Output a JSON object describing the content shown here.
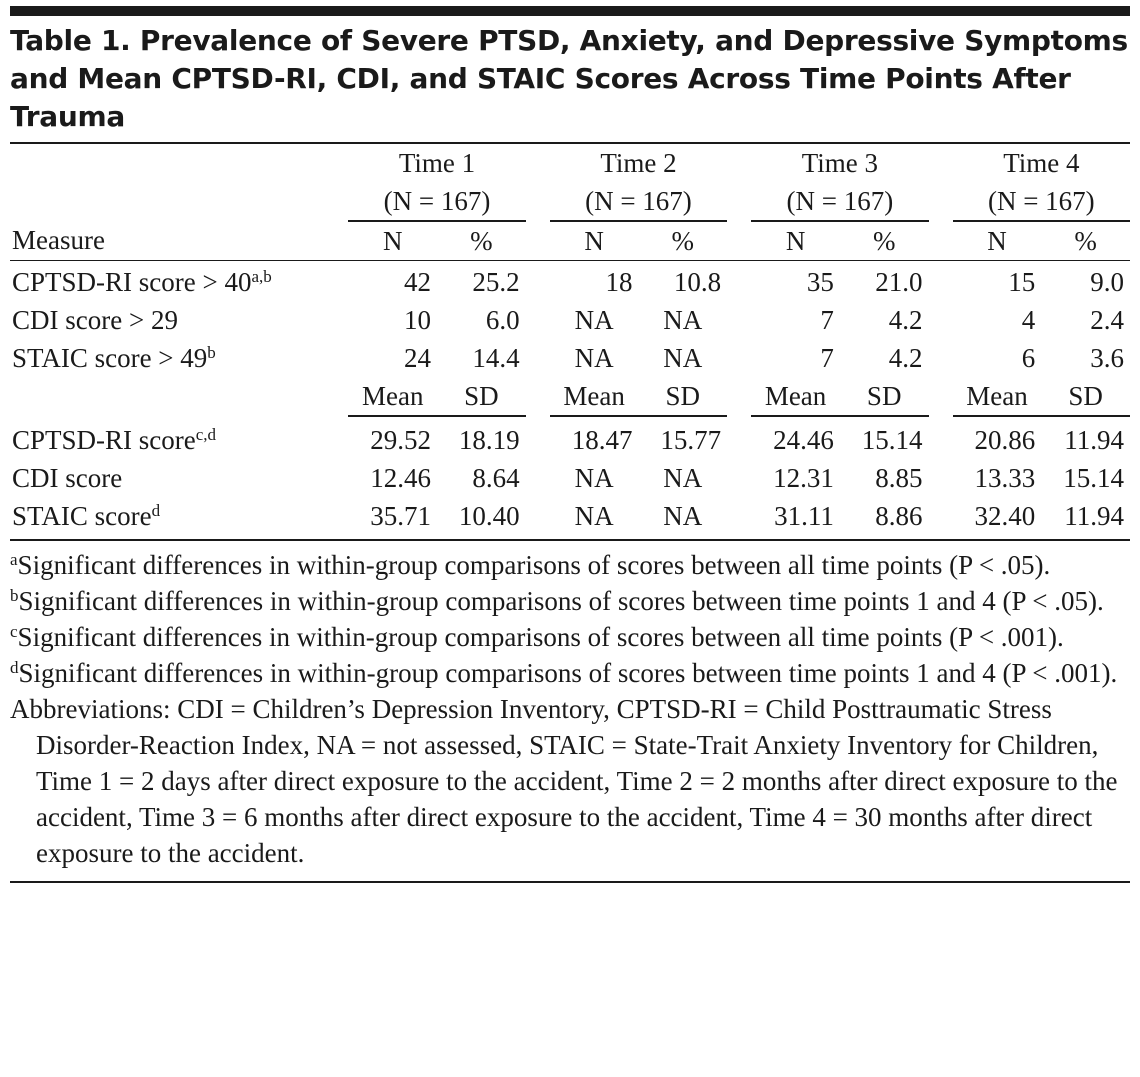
{
  "title": "Table 1. Prevalence of Severe PTSD, Anxiety, and Depressive Symptoms and Mean CPTSD-RI, CDI, and STAIC Scores Across Time Points After Trauma",
  "times": [
    {
      "label": "Time 1",
      "n": "(N = 167)"
    },
    {
      "label": "Time 2",
      "n": "(N = 167)"
    },
    {
      "label": "Time 3",
      "n": "(N = 167)"
    },
    {
      "label": "Time 4",
      "n": "(N = 167)"
    }
  ],
  "measure_header": "Measure",
  "prev_headers": [
    "N",
    "%"
  ],
  "mean_headers": [
    "Mean",
    "SD"
  ],
  "prevalence_rows": [
    {
      "label": "CPTSD-RI score > 40",
      "sup": "a,b",
      "values": [
        "42",
        "25.2",
        "18",
        "10.8",
        "35",
        "21.0",
        "15",
        "9.0"
      ]
    },
    {
      "label": "CDI score > 29",
      "sup": "",
      "values": [
        "10",
        "6.0",
        "NA",
        "NA",
        "7",
        "4.2",
        "4",
        "2.4"
      ]
    },
    {
      "label": "STAIC score > 49",
      "sup": "b",
      "values": [
        "24",
        "14.4",
        "NA",
        "NA",
        "7",
        "4.2",
        "6",
        "3.6"
      ]
    }
  ],
  "mean_rows": [
    {
      "label": "CPTSD-RI score",
      "sup": "c,d",
      "values": [
        "29.52",
        "18.19",
        "18.47",
        "15.77",
        "24.46",
        "15.14",
        "20.86",
        "11.94"
      ]
    },
    {
      "label": "CDI score",
      "sup": "",
      "values": [
        "12.46",
        "8.64",
        "NA",
        "NA",
        "12.31",
        "8.85",
        "13.33",
        "15.14"
      ]
    },
    {
      "label": "STAIC score",
      "sup": "d",
      "values": [
        "35.71",
        "10.40",
        "NA",
        "NA",
        "31.11",
        "8.86",
        "32.40",
        "11.94"
      ]
    }
  ],
  "footnotes": [
    {
      "mark": "a",
      "text": "Significant differences in within-group comparisons of scores between all time points (P < .05)."
    },
    {
      "mark": "b",
      "text": "Significant differences in within-group comparisons of scores between time points 1 and 4 (P < .05)."
    },
    {
      "mark": "c",
      "text": "Significant differences in within-group comparisons of scores between all time points (P < .001)."
    },
    {
      "mark": "d",
      "text": "Significant differences in within-group comparisons of scores between time points 1 and 4 (P < .001)."
    }
  ],
  "abbreviations": "Abbreviations: CDI = Children’s Depression Inventory, CPTSD-RI = Child Posttraumatic Stress Disorder-Reaction Index, NA = not assessed, STAIC = State-Trait Anxiety Inventory for Children, Time 1 = 2 days after direct exposure to the accident, Time 2 = 2 months after direct exposure to the accident, Time 3 = 6 months after direct exposure to the accident, Time 4 = 30 months after direct exposure to the accident."
}
